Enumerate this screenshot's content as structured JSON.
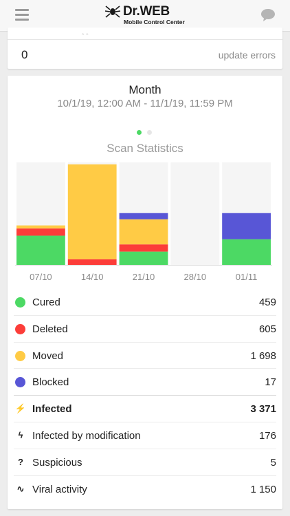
{
  "header": {
    "logo_text": "Dr.WEB",
    "logo_subtitle": "Mobile Control Center",
    "menu_icon": "hamburger-menu-icon",
    "chat_icon": "chat-bubble-icon"
  },
  "updates": {
    "count": "0",
    "label": "update errors"
  },
  "stats": {
    "period_title": "Month",
    "period_range": "10/1/19, 12:00 AM - 11/1/19, 11:59 PM",
    "pager": {
      "pages": 2,
      "active": 0,
      "active_color": "#4cd964",
      "inactive_color": "#e6e6e6"
    },
    "chart_title": "Scan Statistics"
  },
  "chart_data": {
    "type": "bar",
    "stacked": true,
    "categories": [
      "07/10",
      "14/10",
      "21/10",
      "28/10",
      "01/11"
    ],
    "ylim": [
      0,
      1000
    ],
    "grid": false,
    "series": [
      {
        "name": "Cured",
        "color": "#4cd964",
        "values": [
          285,
          0,
          130,
          0,
          250
        ]
      },
      {
        "name": "Deleted",
        "color": "#fc3d39",
        "values": [
          70,
          55,
          70,
          0,
          0
        ]
      },
      {
        "name": "Moved",
        "color": "#ffcb45",
        "values": [
          30,
          925,
          245,
          0,
          0
        ]
      },
      {
        "name": "Blocked",
        "color": "#5856d6",
        "values": [
          0,
          0,
          60,
          0,
          255
        ]
      }
    ],
    "column_bg": "#f5f5f5",
    "tick_color": "#8a8a8a"
  },
  "legend": [
    {
      "label": "Cured",
      "value": "459",
      "color": "#4cd964"
    },
    {
      "label": "Deleted",
      "value": "605",
      "color": "#fc3d39"
    },
    {
      "label": "Moved",
      "value": "1 698",
      "color": "#ffcb45"
    },
    {
      "label": "Blocked",
      "value": "17",
      "color": "#5856d6"
    }
  ],
  "summary": [
    {
      "label": "Infected",
      "value": "3 371",
      "icon": "lightning-icon",
      "glyph": "⚡",
      "bold": true
    },
    {
      "label": "Infected by modification",
      "value": "176",
      "icon": "lightning-outline-icon",
      "glyph": "ϟ",
      "bold": false
    },
    {
      "label": "Suspicious",
      "value": "5",
      "icon": "question-icon",
      "glyph": "?",
      "bold": false
    },
    {
      "label": "Viral activity",
      "value": "1 150",
      "icon": "pulse-icon",
      "glyph": "∿",
      "bold": false
    }
  ]
}
